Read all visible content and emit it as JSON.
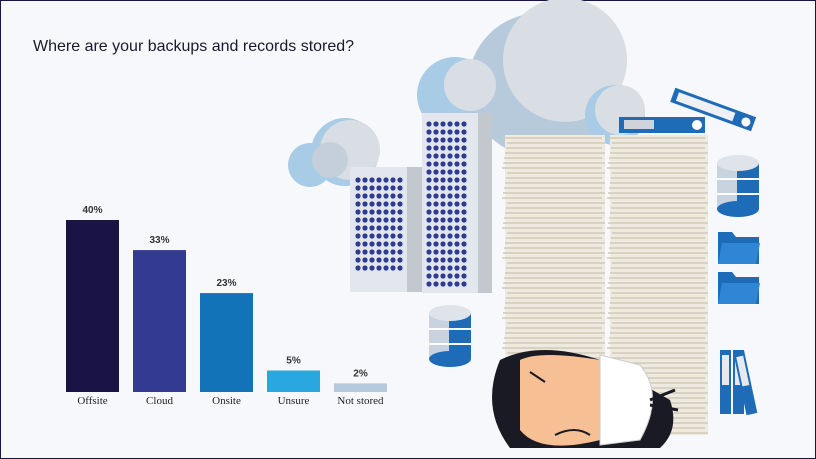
{
  "chart_data": {
    "type": "bar",
    "title": "Where are your backups and records stored?",
    "categories": [
      "Offsite",
      "Cloud",
      "Onsite",
      "Unsure",
      "Not stored"
    ],
    "values": [
      40,
      33,
      23,
      5,
      2
    ],
    "value_labels": [
      "40%",
      "33%",
      "23%",
      "5%",
      "2%"
    ],
    "colors": [
      "#1a1446",
      "#333a91",
      "#1273b8",
      "#29a8e0",
      "#b5cadc"
    ]
  }
}
